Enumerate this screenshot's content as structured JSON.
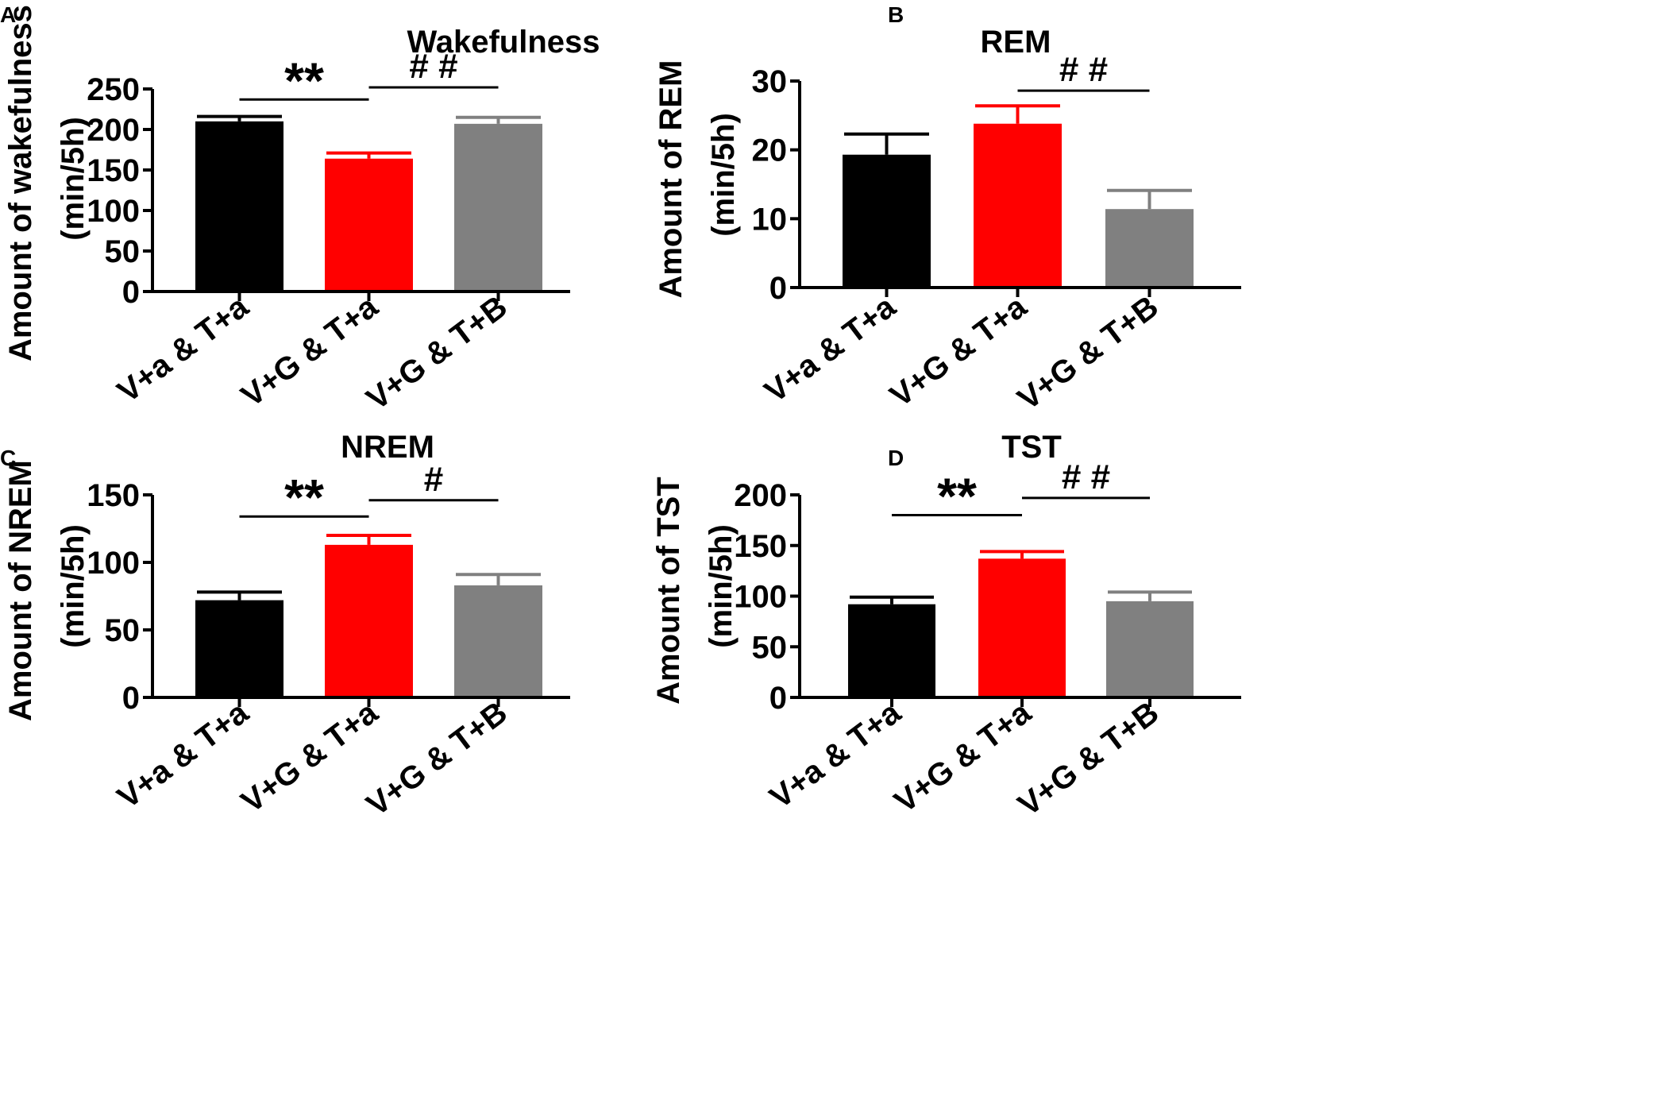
{
  "colors": {
    "black": "#000000",
    "red": "#ff0000",
    "gray": "#808080"
  },
  "chart_data": [
    {
      "panel": "A",
      "type": "bar",
      "title": "Wakefulness",
      "ylabel_lines": [
        "Amount of  wakefulness",
        "(min/5h)"
      ],
      "categories": [
        "V+a & T+a",
        "V+G & T+a",
        "V+G & T+B"
      ],
      "values": [
        210,
        164,
        207
      ],
      "errors": [
        6,
        7,
        8
      ],
      "bar_colors": [
        "#000000",
        "#ff0000",
        "#808080"
      ],
      "ylim": [
        0,
        250
      ],
      "yticks": [
        0,
        50,
        100,
        150,
        200,
        250
      ],
      "significance": [
        {
          "from": 0,
          "to": 1,
          "label": "**",
          "kind": "star",
          "level": 237
        },
        {
          "from": 1,
          "to": 2,
          "label": "# #",
          "kind": "hash",
          "level": 252
        }
      ]
    },
    {
      "panel": "B",
      "type": "bar",
      "title": "REM",
      "ylabel_lines": [
        "Amount of REM",
        "(min/5h)"
      ],
      "categories": [
        "V+a & T+a",
        "V+G & T+a",
        "V+G & T+B"
      ],
      "values": [
        19.3,
        23.8,
        11.4
      ],
      "errors": [
        3.0,
        2.6,
        2.7
      ],
      "bar_colors": [
        "#000000",
        "#ff0000",
        "#808080"
      ],
      "ylim": [
        0,
        30
      ],
      "yticks": [
        0,
        10,
        20,
        30
      ],
      "significance": [
        {
          "from": 1,
          "to": 2,
          "label": "# #",
          "kind": "hash",
          "level": 28.6
        }
      ]
    },
    {
      "panel": "C",
      "type": "bar",
      "title": "NREM",
      "ylabel_lines": [
        "Amount of NREM",
        "(min/5h)"
      ],
      "categories": [
        "V+a & T+a",
        "V+G & T+a",
        "V+G & T+B"
      ],
      "values": [
        72,
        113,
        83
      ],
      "errors": [
        6,
        7,
        8
      ],
      "bar_colors": [
        "#000000",
        "#ff0000",
        "#808080"
      ],
      "ylim": [
        0,
        150
      ],
      "yticks": [
        0,
        50,
        100,
        150
      ],
      "significance": [
        {
          "from": 0,
          "to": 1,
          "label": "**",
          "kind": "star",
          "level": 134
        },
        {
          "from": 1,
          "to": 2,
          "label": "#",
          "kind": "hash",
          "level": 146
        }
      ]
    },
    {
      "panel": "D",
      "type": "bar",
      "title": "TST",
      "ylabel_lines": [
        "Amount of TST",
        "(min/5h)"
      ],
      "categories": [
        "V+a & T+a",
        "V+G & T+a",
        "V+G & T+B"
      ],
      "values": [
        92,
        137,
        95
      ],
      "errors": [
        7,
        7,
        9
      ],
      "bar_colors": [
        "#000000",
        "#ff0000",
        "#808080"
      ],
      "ylim": [
        0,
        200
      ],
      "yticks": [
        0,
        50,
        100,
        150,
        200
      ],
      "significance": [
        {
          "from": 0,
          "to": 1,
          "label": "**",
          "kind": "star",
          "level": 180
        },
        {
          "from": 1,
          "to": 2,
          "label": "# #",
          "kind": "hash",
          "level": 197
        }
      ]
    }
  ]
}
